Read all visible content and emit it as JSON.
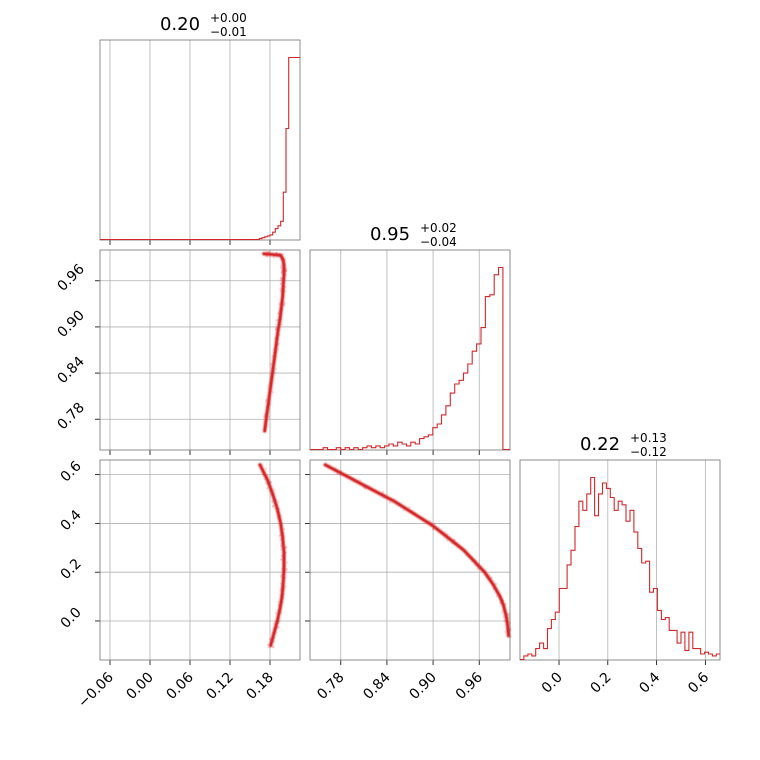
{
  "chart_data": {
    "type": "corner",
    "color": "#d62728",
    "grid": true,
    "parameters": [
      {
        "title_value": "0.20",
        "title_plus": "+0.00",
        "title_minus": "−0.01",
        "range": [
          -0.075,
          0.225
        ],
        "ticks": [
          -0.06,
          0.0,
          0.06,
          0.12,
          0.18
        ],
        "tick_labels": [
          "−0.06",
          "0.00",
          "0.06",
          "0.12",
          "0.18"
        ],
        "hist_bins": [
          0.0,
          0.005,
          0.01,
          0.015,
          0.02,
          0.025,
          0.04,
          0.06,
          0.075,
          0.1,
          0.26,
          0.61,
          1.0
        ],
        "hist_bin_edges_start": 0.16,
        "hist_bin_width": 0.004
      },
      {
        "title_value": "0.95",
        "title_plus": "+0.02",
        "title_minus": "−0.04",
        "range": [
          0.74,
          1.0
        ],
        "ticks": [
          0.78,
          0.84,
          0.9,
          0.96
        ],
        "tick_labels": [
          "0.78",
          "0.84",
          "0.90",
          "0.96"
        ],
        "hist_bins": [
          0.0,
          0.0,
          0.0,
          0.01,
          0.0,
          0.0,
          0.01,
          0.0,
          0.01,
          0.0,
          0.01,
          0.0,
          0.01,
          0.02,
          0.01,
          0.02,
          0.01,
          0.02,
          0.03,
          0.02,
          0.04,
          0.03,
          0.02,
          0.04,
          0.03,
          0.06,
          0.07,
          0.08,
          0.12,
          0.14,
          0.19,
          0.24,
          0.31,
          0.36,
          0.38,
          0.42,
          0.47,
          0.54,
          0.58,
          0.67,
          0.84,
          0.85,
          0.96,
          1.0,
          0.0,
          0.0
        ],
        "hist_bin_edges_start": 0.74,
        "hist_bin_width": 0.0057
      },
      {
        "title_value": "0.22",
        "title_plus": "+0.13",
        "title_minus": "−0.12",
        "range": [
          -0.16,
          0.66
        ],
        "ticks": [
          0.0,
          0.2,
          0.4,
          0.6
        ],
        "tick_labels": [
          "0.0",
          "0.2",
          "0.4",
          "0.6"
        ],
        "hist_bins": [
          0.0,
          0.02,
          0.03,
          0.02,
          0.06,
          0.09,
          0.06,
          0.17,
          0.22,
          0.26,
          0.39,
          0.39,
          0.52,
          0.6,
          0.73,
          0.87,
          0.82,
          0.91,
          1.0,
          0.79,
          0.91,
          0.97,
          0.94,
          0.89,
          0.82,
          0.87,
          0.85,
          0.76,
          0.82,
          0.7,
          0.61,
          0.53,
          0.54,
          0.37,
          0.39,
          0.27,
          0.22,
          0.23,
          0.16,
          0.16,
          0.09,
          0.15,
          0.05,
          0.15,
          0.06,
          0.06,
          0.03,
          0.04,
          0.03,
          0.02,
          0.03
        ],
        "hist_bin_edges_start": -0.16,
        "hist_bin_width": 0.0161
      }
    ],
    "scatter_pairs": [
      {
        "x_param": 0,
        "y_param": 1,
        "curve": [
          [
            0.171,
            0.995
          ],
          [
            0.185,
            0.994
          ],
          [
            0.196,
            0.993
          ],
          [
            0.2,
            0.987
          ],
          [
            0.201,
            0.978
          ],
          [
            0.201,
            0.968
          ],
          [
            0.2,
            0.955
          ],
          [
            0.199,
            0.94
          ],
          [
            0.197,
            0.925
          ],
          [
            0.195,
            0.91
          ],
          [
            0.192,
            0.895
          ],
          [
            0.189,
            0.875
          ],
          [
            0.186,
            0.855
          ],
          [
            0.183,
            0.835
          ],
          [
            0.179,
            0.81
          ],
          [
            0.175,
            0.785
          ],
          [
            0.172,
            0.765
          ]
        ]
      },
      {
        "x_param": 1,
        "y_param": 2,
        "curve": [
          [
            0.76,
            0.64
          ],
          [
            0.79,
            0.59
          ],
          [
            0.82,
            0.54
          ],
          [
            0.85,
            0.49
          ],
          [
            0.88,
            0.43
          ],
          [
            0.9,
            0.39
          ],
          [
            0.92,
            0.34
          ],
          [
            0.94,
            0.29
          ],
          [
            0.955,
            0.24
          ],
          [
            0.967,
            0.2
          ],
          [
            0.978,
            0.15
          ],
          [
            0.987,
            0.1
          ],
          [
            0.992,
            0.06
          ],
          [
            0.995,
            0.02
          ],
          [
            0.997,
            -0.02
          ],
          [
            0.998,
            -0.06
          ]
        ]
      },
      {
        "x_param": 0,
        "y_param": 2,
        "curve": [
          [
            0.165,
            0.64
          ],
          [
            0.176,
            0.58
          ],
          [
            0.184,
            0.52
          ],
          [
            0.191,
            0.46
          ],
          [
            0.196,
            0.4
          ],
          [
            0.199,
            0.34
          ],
          [
            0.201,
            0.28
          ],
          [
            0.201,
            0.22
          ],
          [
            0.2,
            0.16
          ],
          [
            0.198,
            0.1
          ],
          [
            0.195,
            0.05
          ],
          [
            0.191,
            0.0
          ],
          [
            0.186,
            -0.05
          ],
          [
            0.181,
            -0.1
          ]
        ]
      }
    ]
  }
}
